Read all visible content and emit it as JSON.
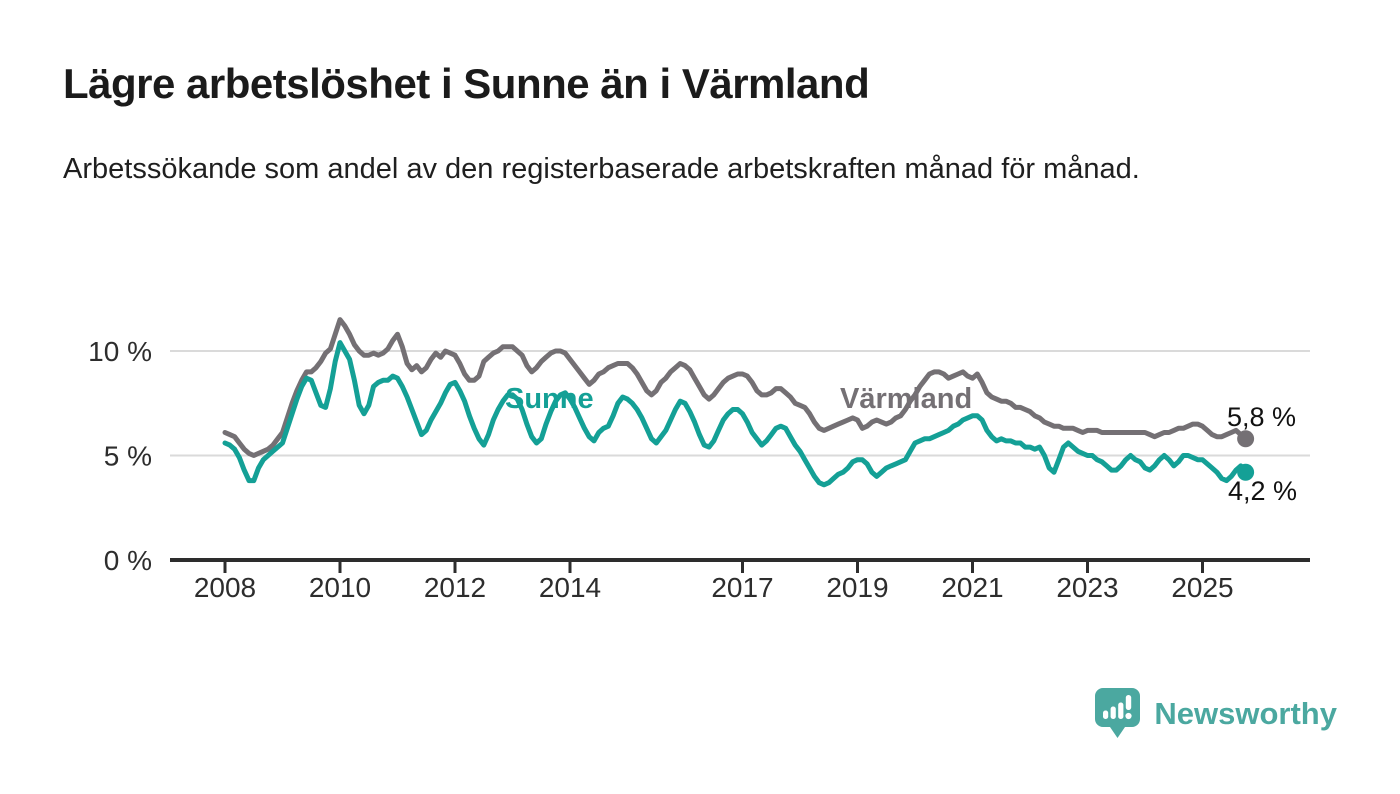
{
  "header": {
    "title": "Lägre arbetslöshet i Sunne än i Värmland",
    "subtitle": "Arbetssökande som andel av den registerbaserade arbetskraften månad för månad."
  },
  "chart_data": {
    "type": "line",
    "unit": "%",
    "frequency": "monthly",
    "x_start": {
      "year": 2008,
      "month": 1
    },
    "x_end": {
      "year": 2025,
      "month": 10
    },
    "ylim": [
      0,
      12
    ],
    "grid": "horizontal",
    "legend_position": "inline-labels",
    "yticks": [
      {
        "value": 0,
        "label": "0 %"
      },
      {
        "value": 5,
        "label": "5 %"
      },
      {
        "value": 10,
        "label": "10 %"
      }
    ],
    "xticks": [
      {
        "value": 2008,
        "label": "2008"
      },
      {
        "value": 2010,
        "label": "2010"
      },
      {
        "value": 2012,
        "label": "2012"
      },
      {
        "value": 2014,
        "label": "2014"
      },
      {
        "value": 2017,
        "label": "2017"
      },
      {
        "value": 2019,
        "label": "2019"
      },
      {
        "value": 2021,
        "label": "2021"
      },
      {
        "value": 2023,
        "label": "2023"
      },
      {
        "value": 2025,
        "label": "2025"
      }
    ],
    "series": [
      {
        "name": "Sunne",
        "color": "#14a096",
        "end_label": "4,2 %",
        "end_value": 4.2,
        "values": [
          5.6,
          5.5,
          5.3,
          4.9,
          4.3,
          3.8,
          3.8,
          4.4,
          4.8,
          5.0,
          5.2,
          5.4,
          5.6,
          6.3,
          7.0,
          7.7,
          8.3,
          8.7,
          8.6,
          8.0,
          7.4,
          7.3,
          8.2,
          9.5,
          10.4,
          10.0,
          9.6,
          8.6,
          7.4,
          7.0,
          7.4,
          8.3,
          8.5,
          8.6,
          8.6,
          8.8,
          8.7,
          8.3,
          7.8,
          7.2,
          6.6,
          6.0,
          6.2,
          6.7,
          7.1,
          7.5,
          8.0,
          8.4,
          8.5,
          8.1,
          7.6,
          6.9,
          6.3,
          5.8,
          5.5,
          6.0,
          6.7,
          7.2,
          7.6,
          7.9,
          7.9,
          7.7,
          7.2,
          6.5,
          5.9,
          5.6,
          5.8,
          6.5,
          7.1,
          7.6,
          7.9,
          8.0,
          7.7,
          7.3,
          6.8,
          6.3,
          5.9,
          5.7,
          6.1,
          6.3,
          6.4,
          6.9,
          7.5,
          7.8,
          7.7,
          7.5,
          7.2,
          6.8,
          6.3,
          5.8,
          5.6,
          5.9,
          6.2,
          6.7,
          7.2,
          7.6,
          7.5,
          7.1,
          6.6,
          6.0,
          5.5,
          5.4,
          5.7,
          6.2,
          6.7,
          7.0,
          7.2,
          7.2,
          7.0,
          6.6,
          6.1,
          5.8,
          5.5,
          5.7,
          6.0,
          6.3,
          6.4,
          6.3,
          5.9,
          5.5,
          5.2,
          4.8,
          4.4,
          4.0,
          3.7,
          3.6,
          3.7,
          3.9,
          4.1,
          4.2,
          4.4,
          4.7,
          4.8,
          4.8,
          4.6,
          4.2,
          4.0,
          4.2,
          4.4,
          4.5,
          4.6,
          4.7,
          4.8,
          5.2,
          5.6,
          5.7,
          5.8,
          5.8,
          5.9,
          6.0,
          6.1,
          6.2,
          6.4,
          6.5,
          6.7,
          6.8,
          6.9,
          6.9,
          6.7,
          6.2,
          5.9,
          5.7,
          5.8,
          5.7,
          5.7,
          5.6,
          5.6,
          5.4,
          5.4,
          5.3,
          5.4,
          5.0,
          4.4,
          4.2,
          4.8,
          5.4,
          5.6,
          5.4,
          5.2,
          5.1,
          5.0,
          5.0,
          4.8,
          4.7,
          4.5,
          4.3,
          4.3,
          4.5,
          4.8,
          5.0,
          4.8,
          4.7,
          4.4,
          4.3,
          4.5,
          4.8,
          5.0,
          4.8,
          4.5,
          4.7,
          5.0,
          5.0,
          4.9,
          4.8,
          4.8,
          4.6,
          4.4,
          4.2,
          3.9,
          3.8,
          4.0,
          4.3,
          4.5,
          4.2
        ]
      },
      {
        "name": "Värmland",
        "color": "#747074",
        "end_label": "5,8 %",
        "end_value": 5.8,
        "values": [
          6.1,
          6.0,
          5.9,
          5.6,
          5.3,
          5.1,
          5.0,
          5.1,
          5.2,
          5.3,
          5.5,
          5.8,
          6.1,
          6.8,
          7.5,
          8.1,
          8.6,
          9.0,
          9.0,
          9.2,
          9.5,
          9.9,
          10.1,
          10.8,
          11.5,
          11.2,
          10.8,
          10.3,
          10.0,
          9.8,
          9.8,
          9.9,
          9.8,
          9.9,
          10.1,
          10.5,
          10.8,
          10.2,
          9.4,
          9.1,
          9.3,
          9.0,
          9.2,
          9.6,
          9.9,
          9.7,
          10.0,
          9.9,
          9.8,
          9.4,
          8.9,
          8.6,
          8.6,
          8.8,
          9.5,
          9.7,
          9.9,
          10.0,
          10.2,
          10.2,
          10.2,
          10.0,
          9.8,
          9.3,
          9.0,
          9.2,
          9.5,
          9.7,
          9.9,
          10.0,
          10.0,
          9.9,
          9.6,
          9.3,
          9.0,
          8.7,
          8.4,
          8.6,
          8.9,
          9.0,
          9.2,
          9.3,
          9.4,
          9.4,
          9.4,
          9.2,
          8.9,
          8.5,
          8.1,
          7.9,
          8.1,
          8.5,
          8.7,
          9.0,
          9.2,
          9.4,
          9.3,
          9.1,
          8.7,
          8.3,
          7.9,
          7.7,
          7.9,
          8.2,
          8.5,
          8.7,
          8.8,
          8.9,
          8.9,
          8.8,
          8.5,
          8.1,
          7.9,
          7.9,
          8.0,
          8.2,
          8.2,
          8.0,
          7.8,
          7.5,
          7.4,
          7.3,
          7.0,
          6.6,
          6.3,
          6.2,
          6.3,
          6.4,
          6.5,
          6.6,
          6.7,
          6.8,
          6.7,
          6.3,
          6.4,
          6.6,
          6.7,
          6.6,
          6.5,
          6.6,
          6.8,
          6.9,
          7.2,
          7.6,
          7.9,
          8.3,
          8.6,
          8.9,
          9.0,
          9.0,
          8.9,
          8.7,
          8.8,
          8.9,
          9.0,
          8.8,
          8.7,
          8.9,
          8.5,
          8.0,
          7.8,
          7.7,
          7.6,
          7.6,
          7.5,
          7.3,
          7.3,
          7.2,
          7.1,
          6.9,
          6.8,
          6.6,
          6.5,
          6.4,
          6.4,
          6.3,
          6.3,
          6.3,
          6.2,
          6.1,
          6.2,
          6.2,
          6.2,
          6.1,
          6.1,
          6.1,
          6.1,
          6.1,
          6.1,
          6.1,
          6.1,
          6.1,
          6.1,
          6.0,
          5.9,
          6.0,
          6.1,
          6.1,
          6.2,
          6.3,
          6.3,
          6.4,
          6.5,
          6.5,
          6.4,
          6.2,
          6.0,
          5.9,
          5.9,
          6.0,
          6.1,
          6.2,
          6.0,
          5.8
        ]
      }
    ],
    "colors": {
      "grid": "#dadada",
      "axis": "#2d2d2d",
      "tick_text": "#2d2d2d",
      "annotation_text": "#111111"
    }
  },
  "footer": {
    "brand": "Newsworthy",
    "brand_color": "#4ba8a0",
    "logo_icon": "bar-chart-exclamation-bubble-icon"
  }
}
